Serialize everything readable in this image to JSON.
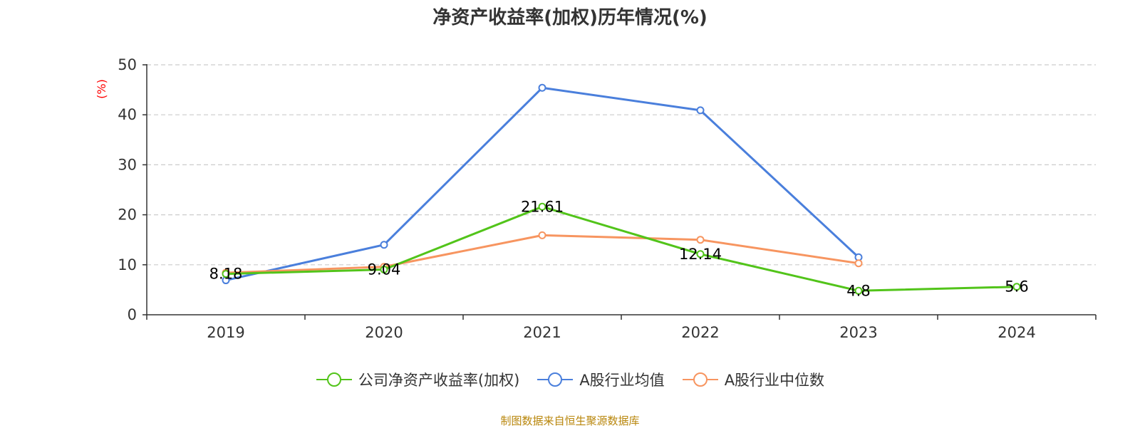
{
  "chart_data": {
    "type": "line",
    "title": "净资产收益率(加权)历年情况(%)",
    "ylabel": "(%)",
    "xlabel": "",
    "ylim": [
      0,
      50
    ],
    "yticks": [
      0,
      10,
      20,
      30,
      40,
      50
    ],
    "grid": true,
    "legend_position": "bottom",
    "categories": [
      "2019",
      "2020",
      "2021",
      "2022",
      "2023",
      "2024"
    ],
    "series": [
      {
        "name": "公司净资产收益率(加权)",
        "color": "#52c41a",
        "values": [
          8.18,
          9.04,
          21.61,
          12.14,
          4.8,
          5.6
        ],
        "labels": [
          "8.18",
          "9.04",
          "21.61",
          "12.14",
          "4.8",
          "5.6"
        ]
      },
      {
        "name": "A股行业均值",
        "color": "#4a7fdc",
        "values": [
          6.9,
          14.0,
          45.4,
          40.9,
          11.5,
          null
        ]
      },
      {
        "name": "A股行业中位数",
        "color": "#f79560",
        "values": [
          8.4,
          9.6,
          15.9,
          15.0,
          10.3,
          null
        ]
      }
    ]
  },
  "source": "制图数据来自恒生聚源数据库"
}
